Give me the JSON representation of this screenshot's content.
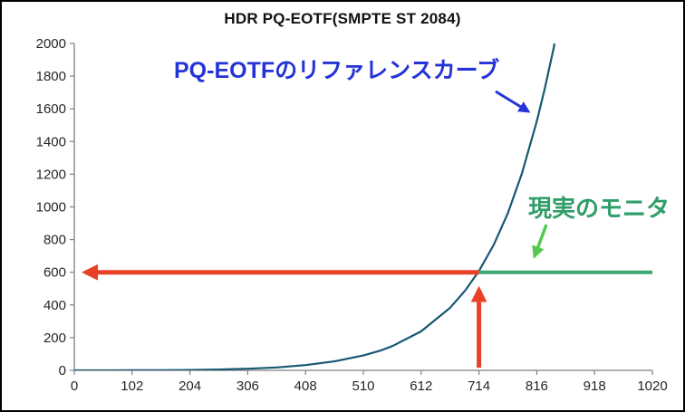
{
  "annotations": {
    "reference_curve_label": "PQ-EOTFのリファレンスカーブ",
    "real_monitor_label": "現実のモニタ"
  },
  "colors": {
    "blue_label": "#2433d6",
    "green_label": "#2f9e68",
    "green_pointer": "#57c84f",
    "red_arrow": "#e84226",
    "axis": "#808080",
    "tick_text": "#262626",
    "title_text": "#111111",
    "frame_border": "#000000"
  },
  "chart_data": {
    "type": "line",
    "title": "HDR PQ-EOTF(SMPTE ST 2084)",
    "xlabel": "",
    "ylabel": "",
    "xlim": [
      0,
      1020
    ],
    "ylim": [
      0,
      2000
    ],
    "x_ticks": [
      0,
      102,
      204,
      306,
      408,
      510,
      612,
      714,
      816,
      918,
      1020
    ],
    "y_ticks": [
      0,
      200,
      400,
      600,
      800,
      1000,
      1200,
      1400,
      1600,
      1800,
      2000
    ],
    "grid": false,
    "legend": false,
    "series": [
      {
        "name": "PQ-EOTF reference curve (SMPTE ST 2084)",
        "color": "#175873",
        "points": [
          [
            0,
            0
          ],
          [
            51,
            0.06
          ],
          [
            102,
            0.3
          ],
          [
            153,
            1
          ],
          [
            204,
            2.4
          ],
          [
            255,
            5.1
          ],
          [
            306,
            10
          ],
          [
            357,
            18
          ],
          [
            408,
            32
          ],
          [
            459,
            55
          ],
          [
            510,
            91
          ],
          [
            540,
            121
          ],
          [
            561,
            148
          ],
          [
            612,
            239
          ],
          [
            663,
            382
          ],
          [
            690,
            490
          ],
          [
            714,
            608
          ],
          [
            740,
            768
          ],
          [
            765,
            961
          ],
          [
            790,
            1206
          ],
          [
            816,
            1523
          ],
          [
            830,
            1723
          ],
          [
            846,
            1975
          ],
          [
            853,
            2120
          ]
        ]
      },
      {
        "name": "Real monitor clip level (現実のモニタ)",
        "color": "#3aa870",
        "points": [
          [
            714,
            600
          ],
          [
            1020,
            600
          ]
        ]
      }
    ],
    "highlight": {
      "x": 714,
      "y": 600
    }
  }
}
